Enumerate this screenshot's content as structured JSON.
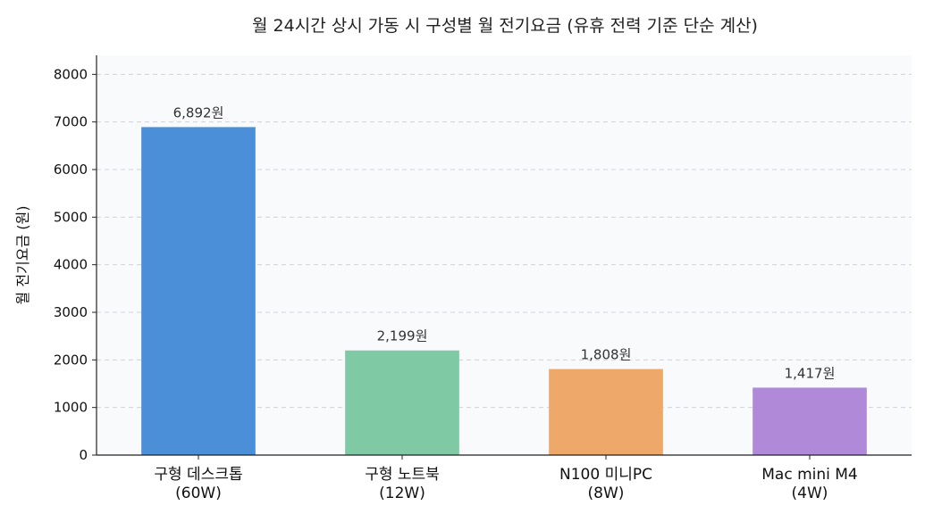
{
  "chart_data": {
    "type": "bar",
    "title": "월 24시간 상시 가동 시 구성별 월 전기요금 (유휴 전력 기준 단순 계산)",
    "xlabel": "",
    "ylabel": "월 전기요금 (원)",
    "ylim": [
      0,
      8400
    ],
    "yticks": [
      0,
      1000,
      2000,
      3000,
      4000,
      5000,
      6000,
      7000,
      8000
    ],
    "grid": true,
    "categories": [
      {
        "name": "구형 데스크톱",
        "sub": "(60W)"
      },
      {
        "name": "구형 노트북",
        "sub": "(12W)"
      },
      {
        "name": "N100 미니PC",
        "sub": "(8W)"
      },
      {
        "name": "Mac mini M4",
        "sub": "(4W)"
      }
    ],
    "values": [
      6892,
      2199,
      1808,
      1417
    ],
    "value_labels": [
      "6,892원",
      "2,199원",
      "1,808원",
      "1,417원"
    ],
    "colors": [
      "#4a8fd8",
      "#7fc9a4",
      "#eea86a",
      "#b08ad8"
    ],
    "plot_background": "#f8fafc"
  }
}
